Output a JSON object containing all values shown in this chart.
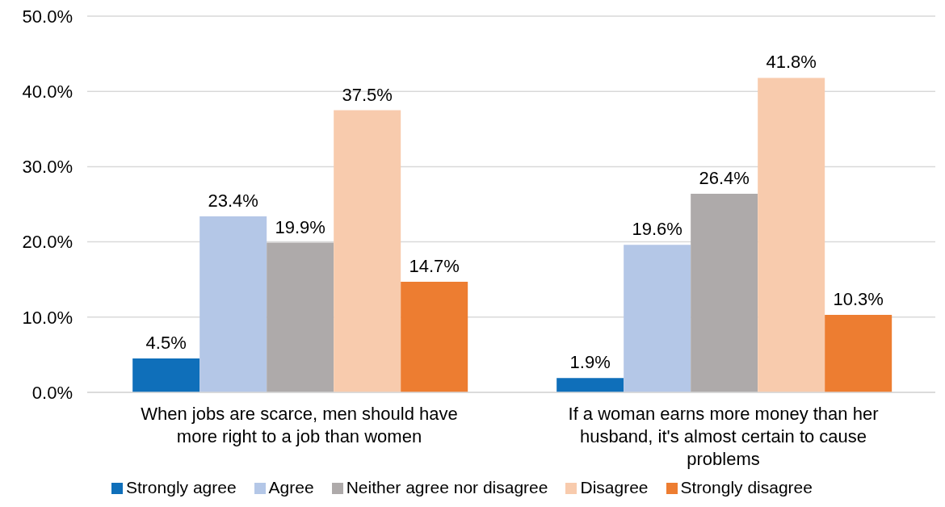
{
  "chart_data": {
    "type": "bar",
    "categories": [
      "When jobs are scarce, men should have more right to a job than women",
      "If a woman earns more money than her husband, it's almost certain to cause problems"
    ],
    "series": [
      {
        "name": "Strongly agree",
        "color": "#0f6fba",
        "values": [
          4.5,
          1.9
        ],
        "value_labels": [
          "4.5%",
          "1.9%"
        ]
      },
      {
        "name": "Agree",
        "color": "#b4c7e7",
        "values": [
          23.4,
          19.6
        ],
        "value_labels": [
          "23.4%",
          "19.6%"
        ]
      },
      {
        "name": "Neither agree nor disagree",
        "color": "#aeaaaa",
        "values": [
          19.9,
          26.4
        ],
        "value_labels": [
          "19.9%",
          "26.4%"
        ]
      },
      {
        "name": "Disagree",
        "color": "#f8cbad",
        "values": [
          37.5,
          41.8
        ],
        "value_labels": [
          "37.5%",
          "41.8%"
        ]
      },
      {
        "name": "Strongly disagree",
        "color": "#ed7d31",
        "values": [
          14.7,
          10.3
        ],
        "value_labels": [
          "14.7%",
          "10.3%"
        ]
      }
    ],
    "ylim": [
      0,
      50
    ],
    "yticks": [
      {
        "value": 0,
        "label": "0.0%"
      },
      {
        "value": 10,
        "label": "10.0%"
      },
      {
        "value": 20,
        "label": "20.0%"
      },
      {
        "value": 30,
        "label": "30.0%"
      },
      {
        "value": 40,
        "label": "40.0%"
      },
      {
        "value": 50,
        "label": "50.0%"
      }
    ],
    "grid": "y",
    "legend": "bottom"
  }
}
